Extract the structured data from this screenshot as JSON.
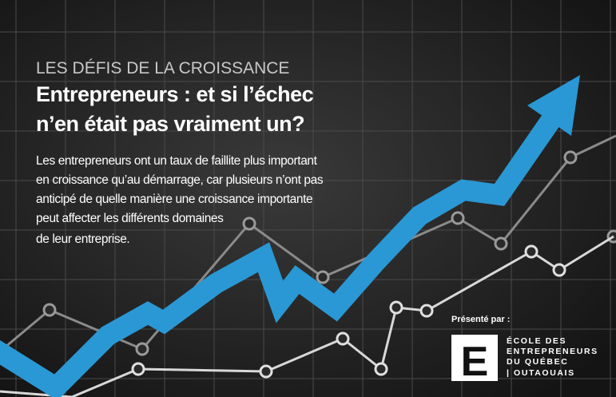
{
  "header": {
    "kicker": "LES DÉFIS DE LA CROISSANCE",
    "title": [
      "Entrepreneurs : et si l’échec",
      "n’en était pas vraiment un?"
    ]
  },
  "body": [
    "Les entrepreneurs ont un taux de faillite plus important",
    "en croissance qu’au démarrage, car plusieurs n’ont pas",
    "anticipé de quelle manière une croissance importante",
    "peut affecter les différents domaines",
    "de leur entreprise."
  ],
  "presenter": {
    "label": "Présenté par :",
    "logo_letter": "E",
    "name_lines": [
      "ÉCOLE DES",
      "ENTREPRENEURS",
      "DU QUÉBEC",
      "| OUTAOUAIS"
    ]
  }
}
